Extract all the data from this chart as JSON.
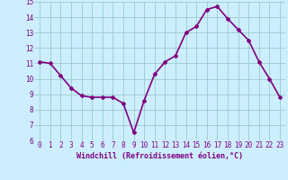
{
  "x": [
    0,
    1,
    2,
    3,
    4,
    5,
    6,
    7,
    8,
    9,
    10,
    11,
    12,
    13,
    14,
    15,
    16,
    17,
    18,
    19,
    20,
    21,
    22,
    23
  ],
  "y": [
    11.1,
    11.0,
    10.2,
    9.4,
    8.9,
    8.8,
    8.8,
    8.8,
    8.4,
    6.5,
    8.6,
    10.3,
    11.1,
    11.5,
    13.0,
    13.4,
    14.5,
    14.7,
    13.9,
    13.2,
    12.5,
    11.1,
    10.0,
    8.8
  ],
  "line_color": "#800080",
  "marker": "D",
  "marker_size": 2,
  "bg_color": "#cceeff",
  "grid_color": "#99cccc",
  "xlabel": "Windchill (Refroidissement éolien,°C)",
  "xlabel_color": "#800080",
  "tick_color": "#800080",
  "ylim": [
    6,
    15
  ],
  "xlim_min": -0.5,
  "xlim_max": 23.5,
  "yticks": [
    6,
    7,
    8,
    9,
    10,
    11,
    12,
    13,
    14,
    15
  ],
  "xticks": [
    0,
    1,
    2,
    3,
    4,
    5,
    6,
    7,
    8,
    9,
    10,
    11,
    12,
    13,
    14,
    15,
    16,
    17,
    18,
    19,
    20,
    21,
    22,
    23
  ],
  "linewidth": 1.2,
  "tick_fontsize": 5.5,
  "xlabel_fontsize": 6.0,
  "ylabel_fontsize": 5.5
}
